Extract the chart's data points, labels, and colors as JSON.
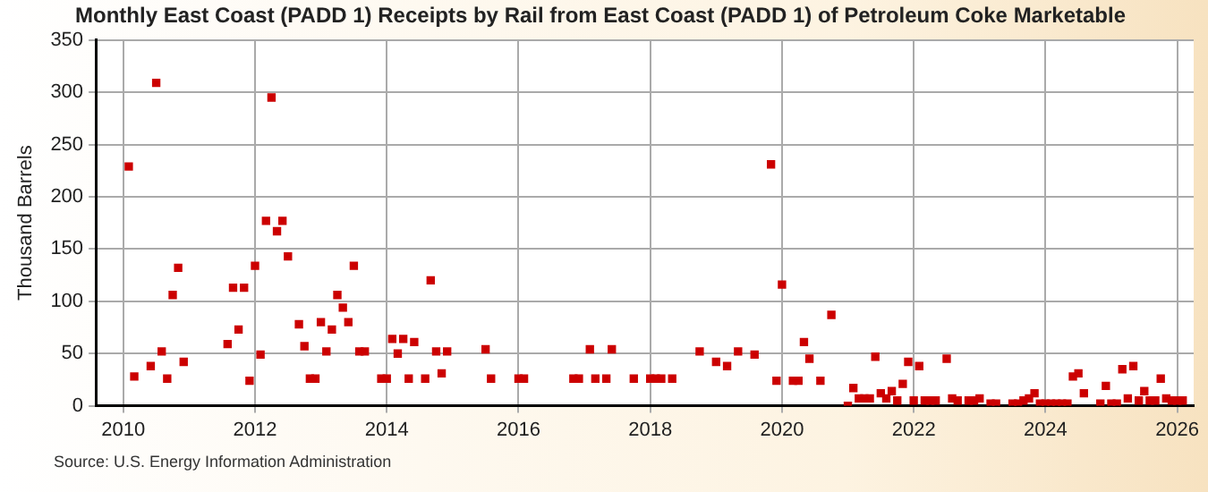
{
  "chart_data": {
    "type": "scatter",
    "title": "Monthly East Coast (PADD 1) Receipts by Rail from East Coast (PADD 1) of Petroleum Coke Marketable",
    "ylabel": "Thousand Barrels",
    "annotations": [
      "Source: U.S. Energy Information Administration"
    ],
    "xlim": [
      "2009-08",
      "2026-04"
    ],
    "xticks": [
      "2010",
      "2012",
      "2014",
      "2016",
      "2018",
      "2020",
      "2022",
      "2024",
      "2026"
    ],
    "ylim": [
      0,
      350
    ],
    "yticks": [
      0,
      50,
      100,
      150,
      200,
      250,
      300,
      350
    ],
    "grid": true,
    "marker": "square",
    "legend": false,
    "series": [
      {
        "color": "#cc0000",
        "x": [
          "2010-02",
          "2010-03",
          "2010-06",
          "2010-07",
          "2010-08",
          "2010-09",
          "2010-10",
          "2010-11",
          "2010-12",
          "2011-08",
          "2011-09",
          "2011-10",
          "2011-11",
          "2011-12",
          "2012-01",
          "2012-02",
          "2012-03",
          "2012-04",
          "2012-05",
          "2012-06",
          "2012-07",
          "2012-09",
          "2012-10",
          "2012-11",
          "2012-12",
          "2013-01",
          "2013-02",
          "2013-03",
          "2013-04",
          "2013-05",
          "2013-06",
          "2013-07",
          "2013-08",
          "2013-09",
          "2013-12",
          "2014-01",
          "2014-02",
          "2014-03",
          "2014-04",
          "2014-05",
          "2014-06",
          "2014-08",
          "2014-09",
          "2014-10",
          "2014-11",
          "2014-12",
          "2015-07",
          "2015-08",
          "2016-01",
          "2016-02",
          "2016-11",
          "2016-12",
          "2017-02",
          "2017-03",
          "2017-05",
          "2017-06",
          "2017-10",
          "2018-01",
          "2018-02",
          "2018-03",
          "2018-05",
          "2018-10",
          "2019-01",
          "2019-03",
          "2019-05",
          "2019-08",
          "2019-11",
          "2019-12",
          "2020-01",
          "2020-03",
          "2020-04",
          "2020-05",
          "2020-06",
          "2020-08",
          "2020-10",
          "2021-01",
          "2021-02",
          "2021-03",
          "2021-04",
          "2021-05",
          "2021-06",
          "2021-07",
          "2021-08",
          "2021-09",
          "2021-10",
          "2021-11",
          "2021-12",
          "2022-01",
          "2022-02",
          "2022-03",
          "2022-04",
          "2022-05",
          "2022-07",
          "2022-08",
          "2022-09",
          "2022-11",
          "2022-12",
          "2023-01",
          "2023-03",
          "2023-04",
          "2023-07",
          "2023-08",
          "2023-09",
          "2023-10",
          "2023-11",
          "2023-12",
          "2024-01",
          "2024-02",
          "2024-03",
          "2024-04",
          "2024-05",
          "2024-06",
          "2024-07",
          "2024-08",
          "2024-11",
          "2024-12",
          "2025-01",
          "2025-02",
          "2025-03",
          "2025-04",
          "2025-05",
          "2025-06",
          "2025-07",
          "2025-08",
          "2025-09",
          "2025-10",
          "2025-11",
          "2025-12",
          "2026-01",
          "2026-02"
        ],
        "values": [
          229,
          28,
          38,
          309,
          52,
          26,
          106,
          132,
          42,
          59,
          113,
          73,
          113,
          24,
          134,
          49,
          177,
          295,
          167,
          177,
          143,
          78,
          57,
          26,
          26,
          80,
          52,
          73,
          106,
          94,
          80,
          134,
          52,
          52,
          26,
          26,
          64,
          50,
          64,
          26,
          61,
          26,
          120,
          52,
          31,
          52,
          54,
          26,
          26,
          26,
          26,
          26,
          54,
          26,
          26,
          54,
          26,
          26,
          26,
          26,
          26,
          52,
          42,
          38,
          52,
          49,
          231,
          24,
          116,
          24,
          24,
          61,
          45,
          24,
          87,
          0,
          17,
          7,
          7,
          7,
          47,
          12,
          7,
          14,
          5,
          21,
          42,
          5,
          38,
          5,
          5,
          5,
          45,
          7,
          5,
          5,
          5,
          7,
          2,
          2,
          2,
          2,
          5,
          7,
          12,
          2,
          2,
          2,
          2,
          2,
          2,
          28,
          31,
          12,
          2,
          19,
          2,
          2,
          35,
          7,
          38,
          5,
          14,
          5,
          5,
          26,
          7,
          5,
          5,
          5
        ]
      }
    ]
  }
}
